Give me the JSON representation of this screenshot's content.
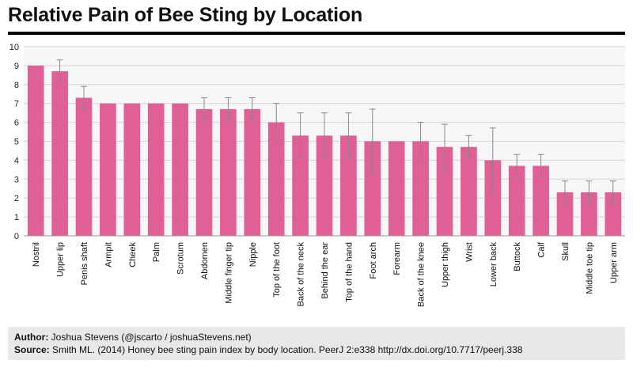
{
  "header": {
    "title": "Relative Pain of Bee Sting by Location"
  },
  "chart_data": {
    "type": "bar",
    "title": "Relative Pain of Bee Sting by Location",
    "xlabel": "",
    "ylabel": "",
    "ylim": [
      0,
      10
    ],
    "yticks": [
      "0",
      "1",
      "2",
      "3",
      "4",
      "5",
      "6",
      "7",
      "8",
      "9",
      "10"
    ],
    "grid": true,
    "bar_color": "#e05f94",
    "error_bar_color": "#888888",
    "categories": [
      "Nostril",
      "Upper lip",
      "Penis shaft",
      "Armpit",
      "Cheek",
      "Palm",
      "Scrotum",
      "Abdomen",
      "Middle finger tip",
      "Nipple",
      "Top of the foot",
      "Back of the neck",
      "Behind the ear",
      "Top of the hand",
      "Foot arch",
      "Forearm",
      "Back of the knee",
      "Upper thigh",
      "Wrist",
      "Lower back",
      "Buttock",
      "Calf",
      "Skull",
      "Middle toe tip",
      "Upper arm"
    ],
    "values": [
      9.0,
      8.7,
      7.3,
      7.0,
      7.0,
      7.0,
      7.0,
      6.7,
      6.7,
      6.7,
      6.0,
      5.3,
      5.3,
      5.3,
      5.0,
      5.0,
      5.0,
      4.7,
      4.7,
      4.0,
      3.7,
      3.7,
      2.3,
      2.3,
      2.3
    ],
    "error_low": [
      9.0,
      8.1,
      6.7,
      7.0,
      7.0,
      7.0,
      7.0,
      6.1,
      6.1,
      6.1,
      5.0,
      4.1,
      4.1,
      4.1,
      3.3,
      5.0,
      4.0,
      3.5,
      4.1,
      2.3,
      3.1,
      3.1,
      1.7,
      1.7,
      1.7
    ],
    "error_high": [
      9.0,
      9.3,
      7.9,
      7.0,
      7.0,
      7.0,
      7.0,
      7.3,
      7.3,
      7.3,
      7.0,
      6.5,
      6.5,
      6.5,
      6.7,
      5.0,
      6.0,
      5.9,
      5.3,
      5.7,
      4.3,
      4.3,
      2.9,
      2.9,
      2.9
    ]
  },
  "footer": {
    "author_label": "Author:",
    "author_text": "Joshua Stevens (@jscarto / joshuaStevens.net)",
    "source_label": "Source:",
    "source_text": "Smith ML. (2014) Honey bee sting pain index by body location. PeerJ 2:e338 http://dx.doi.org/10.7717/peerj.338"
  }
}
